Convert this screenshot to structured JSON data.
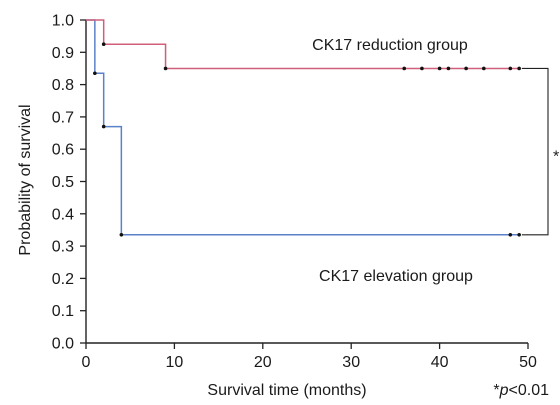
{
  "chart_data": {
    "type": "line",
    "title": "",
    "xlabel": "Survival time (months)",
    "ylabel": "Probability of survival",
    "xlim": [
      0,
      50
    ],
    "ylim": [
      0.0,
      1.0
    ],
    "xticks": [
      0,
      10,
      20,
      30,
      40,
      50
    ],
    "yticks": [
      0.0,
      0.1,
      0.2,
      0.3,
      0.4,
      0.5,
      0.6,
      0.7,
      0.8,
      0.9,
      1.0
    ],
    "xtick_labels": [
      "0",
      "10",
      "20",
      "30",
      "40",
      "50"
    ],
    "ytick_labels": [
      "0.0",
      "0.1",
      "0.2",
      "0.3",
      "0.4",
      "0.5",
      "0.6",
      "0.7",
      "0.8",
      "0.9",
      "1.0"
    ],
    "grid": false,
    "step": true,
    "series": [
      {
        "name": "CK17 reduction group",
        "color": "#d0607a",
        "steps": [
          [
            0,
            1.0
          ],
          [
            2,
            0.925
          ],
          [
            9,
            0.85
          ],
          [
            49,
            0.85
          ]
        ],
        "censored_x": [
          2,
          9,
          36,
          38,
          40,
          41,
          43,
          45,
          48,
          49
        ]
      },
      {
        "name": "CK17 elevation group",
        "color": "#5b82c9",
        "steps": [
          [
            0,
            1.0
          ],
          [
            1,
            0.835
          ],
          [
            2,
            0.67
          ],
          [
            4,
            0.335
          ],
          [
            49,
            0.335
          ]
        ],
        "censored_x": [
          1,
          2,
          4,
          48,
          49
        ]
      }
    ],
    "annotations": {
      "reduction_label": "CK17 reduction group",
      "elevation_label": "CK17 elevation group",
      "significance_star": "*",
      "pvalue_prefix": "*",
      "pvalue_var": "p",
      "pvalue_rest": "<0.01"
    }
  }
}
